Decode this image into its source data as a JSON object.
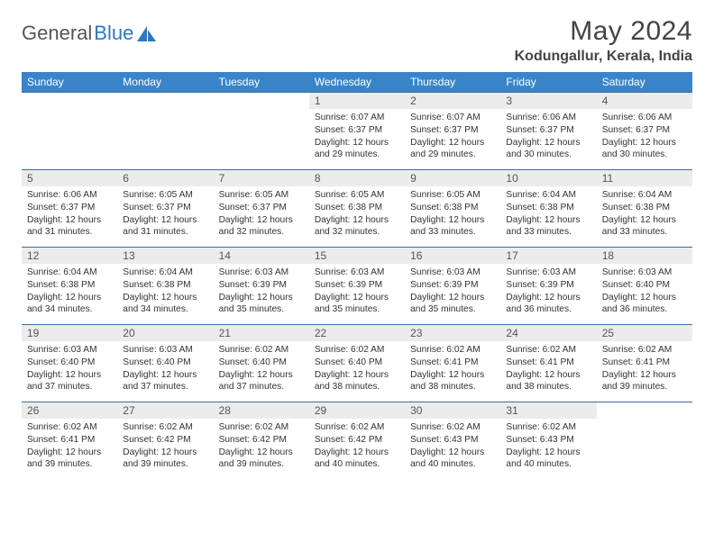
{
  "brand": {
    "general": "General",
    "blue": "Blue"
  },
  "month_title": "May 2024",
  "location": "Kodungallur, Kerala, India",
  "colors": {
    "header_bg": "#3a85c9",
    "header_fg": "#ffffff",
    "row_divider": "#3a6fa3",
    "daynum_bg": "#ececec",
    "text": "#333333",
    "brand_blue": "#2f78bd"
  },
  "weekdays": [
    "Sunday",
    "Monday",
    "Tuesday",
    "Wednesday",
    "Thursday",
    "Friday",
    "Saturday"
  ],
  "weeks": [
    [
      {
        "blank": true
      },
      {
        "blank": true
      },
      {
        "blank": true
      },
      {
        "day": "1",
        "sunrise": "Sunrise: 6:07 AM",
        "sunset": "Sunset: 6:37 PM",
        "dl1": "Daylight: 12 hours",
        "dl2": "and 29 minutes."
      },
      {
        "day": "2",
        "sunrise": "Sunrise: 6:07 AM",
        "sunset": "Sunset: 6:37 PM",
        "dl1": "Daylight: 12 hours",
        "dl2": "and 29 minutes."
      },
      {
        "day": "3",
        "sunrise": "Sunrise: 6:06 AM",
        "sunset": "Sunset: 6:37 PM",
        "dl1": "Daylight: 12 hours",
        "dl2": "and 30 minutes."
      },
      {
        "day": "4",
        "sunrise": "Sunrise: 6:06 AM",
        "sunset": "Sunset: 6:37 PM",
        "dl1": "Daylight: 12 hours",
        "dl2": "and 30 minutes."
      }
    ],
    [
      {
        "day": "5",
        "sunrise": "Sunrise: 6:06 AM",
        "sunset": "Sunset: 6:37 PM",
        "dl1": "Daylight: 12 hours",
        "dl2": "and 31 minutes."
      },
      {
        "day": "6",
        "sunrise": "Sunrise: 6:05 AM",
        "sunset": "Sunset: 6:37 PM",
        "dl1": "Daylight: 12 hours",
        "dl2": "and 31 minutes."
      },
      {
        "day": "7",
        "sunrise": "Sunrise: 6:05 AM",
        "sunset": "Sunset: 6:37 PM",
        "dl1": "Daylight: 12 hours",
        "dl2": "and 32 minutes."
      },
      {
        "day": "8",
        "sunrise": "Sunrise: 6:05 AM",
        "sunset": "Sunset: 6:38 PM",
        "dl1": "Daylight: 12 hours",
        "dl2": "and 32 minutes."
      },
      {
        "day": "9",
        "sunrise": "Sunrise: 6:05 AM",
        "sunset": "Sunset: 6:38 PM",
        "dl1": "Daylight: 12 hours",
        "dl2": "and 33 minutes."
      },
      {
        "day": "10",
        "sunrise": "Sunrise: 6:04 AM",
        "sunset": "Sunset: 6:38 PM",
        "dl1": "Daylight: 12 hours",
        "dl2": "and 33 minutes."
      },
      {
        "day": "11",
        "sunrise": "Sunrise: 6:04 AM",
        "sunset": "Sunset: 6:38 PM",
        "dl1": "Daylight: 12 hours",
        "dl2": "and 33 minutes."
      }
    ],
    [
      {
        "day": "12",
        "sunrise": "Sunrise: 6:04 AM",
        "sunset": "Sunset: 6:38 PM",
        "dl1": "Daylight: 12 hours",
        "dl2": "and 34 minutes."
      },
      {
        "day": "13",
        "sunrise": "Sunrise: 6:04 AM",
        "sunset": "Sunset: 6:38 PM",
        "dl1": "Daylight: 12 hours",
        "dl2": "and 34 minutes."
      },
      {
        "day": "14",
        "sunrise": "Sunrise: 6:03 AM",
        "sunset": "Sunset: 6:39 PM",
        "dl1": "Daylight: 12 hours",
        "dl2": "and 35 minutes."
      },
      {
        "day": "15",
        "sunrise": "Sunrise: 6:03 AM",
        "sunset": "Sunset: 6:39 PM",
        "dl1": "Daylight: 12 hours",
        "dl2": "and 35 minutes."
      },
      {
        "day": "16",
        "sunrise": "Sunrise: 6:03 AM",
        "sunset": "Sunset: 6:39 PM",
        "dl1": "Daylight: 12 hours",
        "dl2": "and 35 minutes."
      },
      {
        "day": "17",
        "sunrise": "Sunrise: 6:03 AM",
        "sunset": "Sunset: 6:39 PM",
        "dl1": "Daylight: 12 hours",
        "dl2": "and 36 minutes."
      },
      {
        "day": "18",
        "sunrise": "Sunrise: 6:03 AM",
        "sunset": "Sunset: 6:40 PM",
        "dl1": "Daylight: 12 hours",
        "dl2": "and 36 minutes."
      }
    ],
    [
      {
        "day": "19",
        "sunrise": "Sunrise: 6:03 AM",
        "sunset": "Sunset: 6:40 PM",
        "dl1": "Daylight: 12 hours",
        "dl2": "and 37 minutes."
      },
      {
        "day": "20",
        "sunrise": "Sunrise: 6:03 AM",
        "sunset": "Sunset: 6:40 PM",
        "dl1": "Daylight: 12 hours",
        "dl2": "and 37 minutes."
      },
      {
        "day": "21",
        "sunrise": "Sunrise: 6:02 AM",
        "sunset": "Sunset: 6:40 PM",
        "dl1": "Daylight: 12 hours",
        "dl2": "and 37 minutes."
      },
      {
        "day": "22",
        "sunrise": "Sunrise: 6:02 AM",
        "sunset": "Sunset: 6:40 PM",
        "dl1": "Daylight: 12 hours",
        "dl2": "and 38 minutes."
      },
      {
        "day": "23",
        "sunrise": "Sunrise: 6:02 AM",
        "sunset": "Sunset: 6:41 PM",
        "dl1": "Daylight: 12 hours",
        "dl2": "and 38 minutes."
      },
      {
        "day": "24",
        "sunrise": "Sunrise: 6:02 AM",
        "sunset": "Sunset: 6:41 PM",
        "dl1": "Daylight: 12 hours",
        "dl2": "and 38 minutes."
      },
      {
        "day": "25",
        "sunrise": "Sunrise: 6:02 AM",
        "sunset": "Sunset: 6:41 PM",
        "dl1": "Daylight: 12 hours",
        "dl2": "and 39 minutes."
      }
    ],
    [
      {
        "day": "26",
        "sunrise": "Sunrise: 6:02 AM",
        "sunset": "Sunset: 6:41 PM",
        "dl1": "Daylight: 12 hours",
        "dl2": "and 39 minutes."
      },
      {
        "day": "27",
        "sunrise": "Sunrise: 6:02 AM",
        "sunset": "Sunset: 6:42 PM",
        "dl1": "Daylight: 12 hours",
        "dl2": "and 39 minutes."
      },
      {
        "day": "28",
        "sunrise": "Sunrise: 6:02 AM",
        "sunset": "Sunset: 6:42 PM",
        "dl1": "Daylight: 12 hours",
        "dl2": "and 39 minutes."
      },
      {
        "day": "29",
        "sunrise": "Sunrise: 6:02 AM",
        "sunset": "Sunset: 6:42 PM",
        "dl1": "Daylight: 12 hours",
        "dl2": "and 40 minutes."
      },
      {
        "day": "30",
        "sunrise": "Sunrise: 6:02 AM",
        "sunset": "Sunset: 6:43 PM",
        "dl1": "Daylight: 12 hours",
        "dl2": "and 40 minutes."
      },
      {
        "day": "31",
        "sunrise": "Sunrise: 6:02 AM",
        "sunset": "Sunset: 6:43 PM",
        "dl1": "Daylight: 12 hours",
        "dl2": "and 40 minutes."
      },
      {
        "blank": true
      }
    ]
  ]
}
